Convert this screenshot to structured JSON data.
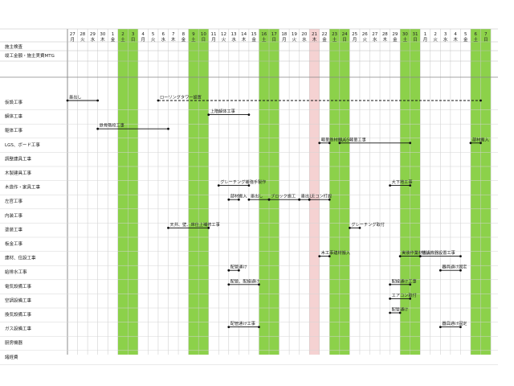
{
  "days": [
    {
      "d": "27",
      "w": "月"
    },
    {
      "d": "28",
      "w": "火"
    },
    {
      "d": "29",
      "w": "水"
    },
    {
      "d": "30",
      "w": "木"
    },
    {
      "d": "1",
      "w": "金"
    },
    {
      "d": "2",
      "w": "土"
    },
    {
      "d": "3",
      "w": "日"
    },
    {
      "d": "4",
      "w": "月"
    },
    {
      "d": "5",
      "w": "火"
    },
    {
      "d": "6",
      "w": "水"
    },
    {
      "d": "7",
      "w": "木"
    },
    {
      "d": "8",
      "w": "金"
    },
    {
      "d": "9",
      "w": "土"
    },
    {
      "d": "10",
      "w": "日"
    },
    {
      "d": "11",
      "w": "月"
    },
    {
      "d": "12",
      "w": "火"
    },
    {
      "d": "13",
      "w": "水"
    },
    {
      "d": "14",
      "w": "木"
    },
    {
      "d": "15",
      "w": "金"
    },
    {
      "d": "16",
      "w": "土"
    },
    {
      "d": "17",
      "w": "日"
    },
    {
      "d": "18",
      "w": "月"
    },
    {
      "d": "19",
      "w": "火"
    },
    {
      "d": "20",
      "w": "水"
    },
    {
      "d": "21",
      "w": "木"
    },
    {
      "d": "22",
      "w": "金"
    },
    {
      "d": "23",
      "w": "土"
    },
    {
      "d": "24",
      "w": "日"
    },
    {
      "d": "25",
      "w": "月"
    },
    {
      "d": "26",
      "w": "火"
    },
    {
      "d": "27",
      "w": "水"
    },
    {
      "d": "28",
      "w": "木"
    },
    {
      "d": "29",
      "w": "金"
    },
    {
      "d": "30",
      "w": "土"
    },
    {
      "d": "31",
      "w": "日"
    },
    {
      "d": "1",
      "w": "月"
    },
    {
      "d": "2",
      "w": "火"
    },
    {
      "d": "3",
      "w": "水"
    },
    {
      "d": "4",
      "w": "木"
    },
    {
      "d": "5",
      "w": "金"
    },
    {
      "d": "6",
      "w": "土"
    },
    {
      "d": "7",
      "w": "日"
    }
  ],
  "weekend_color": "#8cd14a",
  "holiday_color": "#f5d2d2",
  "holiday_index": 24,
  "header_rows": [
    "施主検査",
    "竣工金額・施主実費MTG"
  ],
  "rows": [
    "仮設工事",
    "解体工事",
    "躯体工事",
    "LGS、ボード工事",
    "調整建具工事",
    "木製建具工事",
    "木造作・家具工事",
    "左官工事",
    "内装工事",
    "塗装工事",
    "板金工事",
    "建材、住設工事",
    "給排水工事",
    "電気設備工事",
    "空調設備工事",
    "換気設備工事",
    "ガス設備工事",
    "厨房機器",
    "諸経費"
  ],
  "bars": [
    {
      "row": 0,
      "s": 0,
      "e": 3,
      "dash": false,
      "label": "墨出し"
    },
    {
      "row": 0,
      "s": 9,
      "e": 41,
      "dash": true,
      "label": "ローリングタワー設置"
    },
    {
      "row": 1,
      "s": 14,
      "e": 18,
      "dash": false,
      "label": "上階解体工事"
    },
    {
      "row": 2,
      "s": 3,
      "e": 10,
      "dash": false,
      "label": "鉄骨階段工事"
    },
    {
      "row": 3,
      "s": 25,
      "e": 26,
      "dash": false,
      "label": "軽量鉄材搬入"
    },
    {
      "row": 3,
      "s": 27,
      "e": 34,
      "dash": false,
      "label": "LGS軽量工事"
    },
    {
      "row": 3,
      "s": 40,
      "e": 41,
      "dash": false,
      "label": "部材搬入"
    },
    {
      "row": 6,
      "s": 15,
      "e": 18,
      "dash": false,
      "label": "グレーチング補強手製作"
    },
    {
      "row": 6,
      "s": 32,
      "e": 34,
      "dash": false,
      "label": "大下地工事"
    },
    {
      "row": 7,
      "s": 16,
      "e": 17,
      "dash": false,
      "label": "部材搬入"
    },
    {
      "row": 7,
      "s": 18,
      "e": 20,
      "dash": false,
      "label": "墨出し"
    },
    {
      "row": 7,
      "s": 20,
      "e": 23,
      "dash": false,
      "label": "ブロック施工"
    },
    {
      "row": 7,
      "s": 23,
      "e": 24,
      "dash": false,
      "label": "墨出し"
    },
    {
      "row": 7,
      "s": 24,
      "e": 26,
      "dash": false,
      "label": "モコン打設"
    },
    {
      "row": 9,
      "s": 10,
      "e": 14,
      "dash": false,
      "label": "天井、壁、床仕上補修工事"
    },
    {
      "row": 9,
      "s": 28,
      "e": 29,
      "dash": false,
      "label": "グレーチング取付"
    },
    {
      "row": 11,
      "s": 25,
      "e": 26,
      "dash": false,
      "label": "木工事建材搬入"
    },
    {
      "row": 11,
      "s": 33,
      "e": 35,
      "dash": false,
      "label": "実装作業材搬入"
    },
    {
      "row": 11,
      "s": 35,
      "e": 39,
      "dash": false,
      "label": "住設機器設置工事"
    },
    {
      "row": 12,
      "s": 16,
      "e": 17,
      "dash": false,
      "label": "配管通け"
    },
    {
      "row": 12,
      "s": 37,
      "e": 39,
      "dash": false,
      "label": "器具通け固定"
    },
    {
      "row": 13,
      "s": 16,
      "e": 19,
      "dash": false,
      "label": "配管、配線通け"
    },
    {
      "row": 13,
      "s": 32,
      "e": 34,
      "dash": false,
      "label": "配線通け工事"
    },
    {
      "row": 14,
      "s": 32,
      "e": 34,
      "dash": false,
      "label": "エアコン取付"
    },
    {
      "row": 15,
      "s": 32,
      "e": 33,
      "dash": false,
      "label": "配管通け"
    },
    {
      "row": 16,
      "s": 16,
      "e": 19,
      "dash": false,
      "label": "配管通け工事"
    },
    {
      "row": 16,
      "s": 37,
      "e": 39,
      "dash": false,
      "label": "器具通け固定"
    }
  ]
}
